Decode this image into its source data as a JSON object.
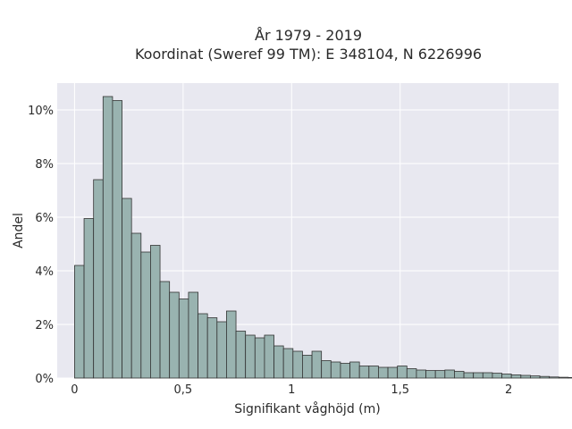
{
  "chart_data": {
    "type": "bar",
    "title": "År 1979 - 2019",
    "subtitle": "Koordinat (Sweref 99 TM): E 348104, N 6226996",
    "xlabel": "Signifikant våghöjd (m)",
    "ylabel": "Andel",
    "xlim": [
      -0.08,
      2.23
    ],
    "ylim": [
      0,
      11
    ],
    "x_ticks": [
      {
        "value": 0,
        "label": "0"
      },
      {
        "value": 0.5,
        "label": "0,5"
      },
      {
        "value": 1,
        "label": "1"
      },
      {
        "value": 1.5,
        "label": "1,5"
      },
      {
        "value": 2,
        "label": "2"
      }
    ],
    "y_ticks": [
      {
        "value": 0,
        "label": "0%"
      },
      {
        "value": 2,
        "label": "2%"
      },
      {
        "value": 4,
        "label": "4%"
      },
      {
        "value": 6,
        "label": "6%"
      },
      {
        "value": 8,
        "label": "8%"
      },
      {
        "value": 10,
        "label": "10%"
      }
    ],
    "bin_start": 0,
    "bin_width": 0.04375,
    "values": [
      4.2,
      5.95,
      7.4,
      10.5,
      10.35,
      6.7,
      5.4,
      4.7,
      4.95,
      3.6,
      3.2,
      2.95,
      3.2,
      2.4,
      2.25,
      2.1,
      2.5,
      1.75,
      1.6,
      1.5,
      1.6,
      1.2,
      1.1,
      1.0,
      0.85,
      1.0,
      0.65,
      0.6,
      0.55,
      0.6,
      0.45,
      0.45,
      0.4,
      0.4,
      0.45,
      0.35,
      0.3,
      0.28,
      0.28,
      0.3,
      0.25,
      0.2,
      0.2,
      0.2,
      0.18,
      0.15,
      0.12,
      0.1,
      0.08,
      0.06,
      0.04,
      0.03,
      0.02
    ],
    "grid": true,
    "colors": {
      "bar_fill": "#99b3b0",
      "bar_edge": "#333333",
      "plot_bg": "#e8e8f0",
      "grid": "#ffffff"
    }
  }
}
